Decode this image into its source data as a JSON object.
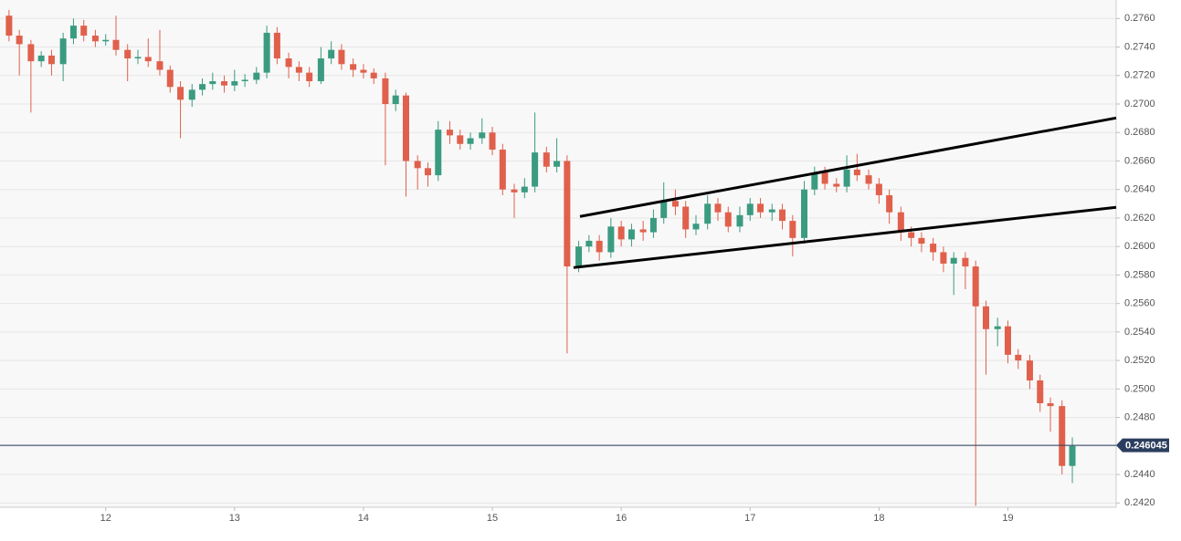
{
  "chart_data": {
    "type": "candlestick",
    "x": [
      11.25,
      11.33,
      11.42,
      11.5,
      11.58,
      11.67,
      11.75,
      11.83,
      11.92,
      12,
      12.08,
      12.17,
      12.25,
      12.33,
      12.42,
      12.5,
      12.58,
      12.67,
      12.75,
      12.83,
      12.92,
      13,
      13.08,
      13.17,
      13.25,
      13.33,
      13.42,
      13.5,
      13.58,
      13.67,
      13.75,
      13.83,
      13.92,
      14,
      14.08,
      14.17,
      14.25,
      14.33,
      14.42,
      14.5,
      14.58,
      14.67,
      14.75,
      14.83,
      14.92,
      15,
      15.08,
      15.17,
      15.25,
      15.33,
      15.42,
      15.5,
      15.58,
      15.67,
      15.75,
      15.83,
      15.92,
      16,
      16.08,
      16.17,
      16.25,
      16.33,
      16.42,
      16.5,
      16.58,
      16.67,
      16.75,
      16.83,
      16.92,
      17,
      17.08,
      17.17,
      17.25,
      17.33,
      17.42,
      17.5,
      17.58,
      17.67,
      17.75,
      17.83,
      17.92,
      18,
      18.08,
      18.17,
      18.25,
      18.33,
      18.42,
      18.5,
      18.58,
      18.67,
      18.75,
      18.83,
      18.92,
      19,
      19.08,
      19.17,
      19.25,
      19.33,
      19.42,
      19.5
    ],
    "open": [
      0.2762,
      0.2748,
      0.2742,
      0.273,
      0.2734,
      0.2728,
      0.2746,
      0.2755,
      0.2748,
      0.2744,
      0.2745,
      0.2738,
      0.2732,
      0.2733,
      0.273,
      0.2724,
      0.2712,
      0.2703,
      0.271,
      0.2714,
      0.2716,
      0.2713,
      0.2716,
      0.2717,
      0.2722,
      0.275,
      0.2732,
      0.2726,
      0.2722,
      0.2716,
      0.2732,
      0.2738,
      0.2728,
      0.2724,
      0.2722,
      0.2718,
      0.27,
      0.2706,
      0.266,
      0.2655,
      0.265,
      0.2682,
      0.2678,
      0.2672,
      0.2676,
      0.268,
      0.2668,
      0.264,
      0.2638,
      0.2642,
      0.2666,
      0.2656,
      0.266,
      0.2586,
      0.26,
      0.2604,
      0.2596,
      0.2614,
      0.2605,
      0.2612,
      0.261,
      0.262,
      0.2632,
      0.2628,
      0.2612,
      0.2616,
      0.263,
      0.2624,
      0.2614,
      0.2622,
      0.263,
      0.2624,
      0.2626,
      0.2618,
      0.2606,
      0.264,
      0.2652,
      0.2644,
      0.2642,
      0.2654,
      0.265,
      0.2644,
      0.2636,
      0.2624,
      0.261,
      0.2606,
      0.2602,
      0.2596,
      0.2588,
      0.2592,
      0.2586,
      0.2558,
      0.2542,
      0.2544,
      0.2524,
      0.252,
      0.2506,
      0.249,
      0.2488,
      0.2446
    ],
    "high": [
      0.2766,
      0.2752,
      0.2745,
      0.2737,
      0.2738,
      0.275,
      0.276,
      0.2759,
      0.2752,
      0.2749,
      0.2762,
      0.2742,
      0.2738,
      0.2746,
      0.2752,
      0.2727,
      0.2716,
      0.2714,
      0.2718,
      0.2722,
      0.272,
      0.2724,
      0.2721,
      0.2726,
      0.2755,
      0.2754,
      0.2736,
      0.273,
      0.2726,
      0.274,
      0.2744,
      0.2742,
      0.2732,
      0.2728,
      0.2725,
      0.2722,
      0.271,
      0.2708,
      0.2664,
      0.2659,
      0.2688,
      0.2688,
      0.2682,
      0.268,
      0.269,
      0.2684,
      0.2672,
      0.2644,
      0.2648,
      0.2694,
      0.267,
      0.2676,
      0.2664,
      0.2604,
      0.2608,
      0.2608,
      0.262,
      0.2618,
      0.2616,
      0.2618,
      0.2626,
      0.2645,
      0.264,
      0.2632,
      0.2622,
      0.2636,
      0.2634,
      0.2628,
      0.2628,
      0.2634,
      0.2634,
      0.263,
      0.263,
      0.2622,
      0.2646,
      0.2656,
      0.2656,
      0.2648,
      0.2664,
      0.2665,
      0.2654,
      0.2648,
      0.264,
      0.2628,
      0.2614,
      0.261,
      0.2606,
      0.26,
      0.2596,
      0.2596,
      0.259,
      0.2562,
      0.255,
      0.2548,
      0.2528,
      0.2524,
      0.251,
      0.2494,
      0.2492,
      0.2466
    ],
    "low": [
      0.2744,
      0.272,
      0.2694,
      0.2726,
      0.272,
      0.2716,
      0.2742,
      0.2744,
      0.274,
      0.2741,
      0.2734,
      0.2716,
      0.2728,
      0.2726,
      0.272,
      0.2708,
      0.2676,
      0.2698,
      0.2706,
      0.271,
      0.2708,
      0.2709,
      0.2712,
      0.2714,
      0.2718,
      0.2728,
      0.2718,
      0.2716,
      0.2712,
      0.2714,
      0.2728,
      0.2724,
      0.2719,
      0.2718,
      0.2714,
      0.2657,
      0.2695,
      0.2635,
      0.264,
      0.2642,
      0.2646,
      0.2672,
      0.2668,
      0.2668,
      0.2672,
      0.2664,
      0.2636,
      0.262,
      0.2634,
      0.2638,
      0.2652,
      0.2652,
      0.2525,
      0.2582,
      0.2596,
      0.259,
      0.2592,
      0.26,
      0.26,
      0.2604,
      0.2606,
      0.2616,
      0.2622,
      0.2606,
      0.2608,
      0.2612,
      0.2618,
      0.261,
      0.261,
      0.2618,
      0.262,
      0.2618,
      0.2612,
      0.2593,
      0.2602,
      0.2636,
      0.264,
      0.2638,
      0.2638,
      0.2646,
      0.264,
      0.263,
      0.2616,
      0.2604,
      0.26,
      0.2596,
      0.259,
      0.2582,
      0.2566,
      0.257,
      0.2418,
      0.251,
      0.253,
      0.2518,
      0.2514,
      0.25,
      0.2484,
      0.247,
      0.244,
      0.2434
    ],
    "close": [
      0.2748,
      0.2742,
      0.273,
      0.2734,
      0.2728,
      0.2746,
      0.2755,
      0.2748,
      0.2744,
      0.2745,
      0.2738,
      0.2732,
      0.2733,
      0.273,
      0.2724,
      0.2712,
      0.2703,
      0.271,
      0.2714,
      0.2716,
      0.2713,
      0.2716,
      0.2717,
      0.2722,
      0.275,
      0.2732,
      0.2726,
      0.2722,
      0.2716,
      0.2732,
      0.2738,
      0.2728,
      0.2724,
      0.2722,
      0.2718,
      0.27,
      0.2706,
      0.266,
      0.2655,
      0.265,
      0.2682,
      0.2678,
      0.2672,
      0.2676,
      0.268,
      0.2668,
      0.264,
      0.2638,
      0.2642,
      0.2666,
      0.2656,
      0.266,
      0.2586,
      0.26,
      0.2604,
      0.2596,
      0.2614,
      0.2605,
      0.2612,
      0.261,
      0.262,
      0.2632,
      0.2628,
      0.2612,
      0.2616,
      0.263,
      0.2624,
      0.2614,
      0.2622,
      0.263,
      0.2624,
      0.2626,
      0.2618,
      0.2606,
      0.264,
      0.2652,
      0.2644,
      0.2642,
      0.2654,
      0.265,
      0.2644,
      0.2636,
      0.2624,
      0.261,
      0.2606,
      0.2602,
      0.2596,
      0.2588,
      0.2592,
      0.2586,
      0.2558,
      0.2542,
      0.2544,
      0.2524,
      0.252,
      0.2506,
      0.249,
      0.2488,
      0.2446,
      0.246
    ],
    "up_color": "#3a9b80",
    "down_color": "#e0604c",
    "price_line": 0.246045,
    "price_line_color": "#2c3e5f",
    "trendlines": [
      {
        "x": [
          15.68,
          19.84
        ],
        "y": [
          0.26211,
          0.26902
        ]
      },
      {
        "x": [
          15.63,
          19.84
        ],
        "y": [
          0.25852,
          0.26275
        ]
      }
    ],
    "xlim": [
      11.18,
      19.84
    ],
    "xticks": [
      12,
      13,
      14,
      15,
      16,
      17,
      18,
      19
    ],
    "ylim": [
      0.2417,
      0.2773
    ],
    "yticks": [
      {
        "value": 0.242,
        "label": "0.2420"
      },
      {
        "value": 0.244,
        "label": "0.2440"
      },
      {
        "value": 0.246,
        "label": "0.2460"
      },
      {
        "value": 0.248,
        "label": "0.2480"
      },
      {
        "value": 0.25,
        "label": "0.2500"
      },
      {
        "value": 0.252,
        "label": "0.2520"
      },
      {
        "value": 0.254,
        "label": "0.2540"
      },
      {
        "value": 0.256,
        "label": "0.2560"
      },
      {
        "value": 0.258,
        "label": "0.2580"
      },
      {
        "value": 0.26,
        "label": "0.2600"
      },
      {
        "value": 0.262,
        "label": "0.2620"
      },
      {
        "value": 0.264,
        "label": "0.2640"
      },
      {
        "value": 0.266,
        "label": "0.2660"
      },
      {
        "value": 0.268,
        "label": "0.2680"
      },
      {
        "value": 0.27,
        "label": "0.2700"
      },
      {
        "value": 0.272,
        "label": "0.2720"
      },
      {
        "value": 0.274,
        "label": "0.2740"
      },
      {
        "value": 0.276,
        "label": "0.2760"
      }
    ],
    "grid": true
  }
}
